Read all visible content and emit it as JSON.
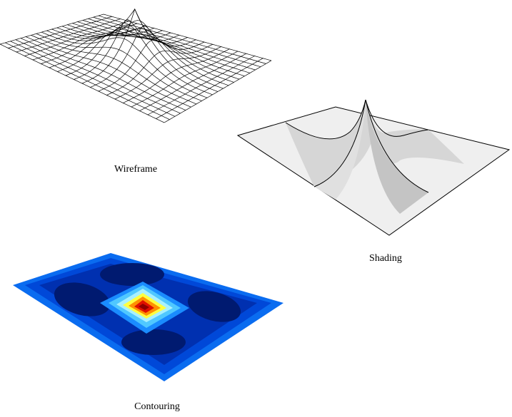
{
  "captions": {
    "wireframe": "Wireframe",
    "shading": "Shading",
    "contouring": "Contouring"
  }
}
